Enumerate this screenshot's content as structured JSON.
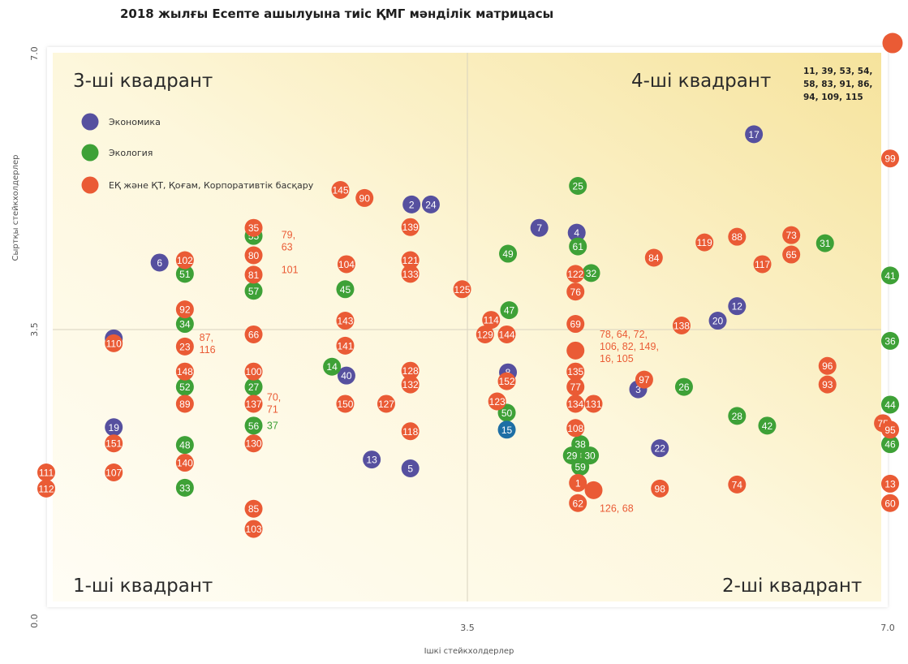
{
  "colors": {
    "economy": "#56509f",
    "ecology": "#3ea137",
    "social": "#ea5b35",
    "dark_blue": "#1e6fa5",
    "bg_warm": "#fbedb3"
  },
  "chart_data": {
    "type": "scatter",
    "title": "2018 жылғы Есепте ашылуына тиіс ҚМГ мәнділік матрицасы",
    "xlabel": "Ішкі стейкхолдерлер",
    "ylabel": "Сыртқы стейкхолдерлер",
    "xlim": [
      0,
      7
    ],
    "ylim": [
      0,
      7
    ],
    "x_ticks": [
      "0.0",
      "3.5",
      "7.0"
    ],
    "y_ticks": [
      "0.0",
      "3.5",
      "7.0"
    ],
    "grid": false,
    "legend_position": "top-left",
    "quadrants": [
      "1-ші квадрант",
      "2-ші квадрант",
      "3-ші квадрант",
      "4-ші квадрант"
    ],
    "top_right_note": [
      "11, 39, 53, 54,",
      "58, 83, 91, 86,",
      "94, 109, 115"
    ],
    "series": [
      {
        "name": "Экономика",
        "color": "economy",
        "points": [
          {
            "label": "17",
            "x": 5.87,
            "y": 5.91
          },
          {
            "label": "2",
            "x": 3.03,
            "y": 5.04
          },
          {
            "label": "24",
            "x": 3.19,
            "y": 5.04
          },
          {
            "label": "7",
            "x": 4.09,
            "y": 4.75
          },
          {
            "label": "4",
            "x": 4.4,
            "y": 4.69
          },
          {
            "label": "6",
            "x": 0.94,
            "y": 4.32
          },
          {
            "label": "12",
            "x": 5.73,
            "y": 3.78
          },
          {
            "label": "20",
            "x": 5.57,
            "y": 3.6
          },
          {
            "label": "9",
            "x": 0.56,
            "y": 3.38
          },
          {
            "label": "40",
            "x": 2.49,
            "y": 2.92
          },
          {
            "label": "8",
            "x": 3.83,
            "y": 2.96
          },
          {
            "label": "3",
            "x": 4.91,
            "y": 2.75
          },
          {
            "label": "19",
            "x": 0.56,
            "y": 2.28
          },
          {
            "label": "22",
            "x": 5.09,
            "y": 2.02
          },
          {
            "label": "13",
            "x": 2.7,
            "y": 1.88
          },
          {
            "label": "5",
            "x": 3.02,
            "y": 1.77
          }
        ]
      },
      {
        "name": "Экология",
        "color": "ecology",
        "points": [
          {
            "label": "25",
            "x": 4.41,
            "y": 5.27
          },
          {
            "label": "55",
            "x": 1.72,
            "y": 4.65
          },
          {
            "label": "61",
            "x": 4.41,
            "y": 4.52
          },
          {
            "label": "31",
            "x": 6.46,
            "y": 4.56
          },
          {
            "label": "49",
            "x": 3.83,
            "y": 4.43
          },
          {
            "label": "51",
            "x": 1.15,
            "y": 4.18
          },
          {
            "label": "32",
            "x": 4.52,
            "y": 4.19
          },
          {
            "label": "45",
            "x": 2.48,
            "y": 3.99
          },
          {
            "label": "57",
            "x": 1.72,
            "y": 3.97
          },
          {
            "label": "41",
            "x": 7.0,
            "y": 4.16
          },
          {
            "label": "47",
            "x": 3.84,
            "y": 3.73
          },
          {
            "label": "34",
            "x": 1.15,
            "y": 3.56
          },
          {
            "label": "36",
            "x": 7.0,
            "y": 3.35
          },
          {
            "label": "14",
            "x": 2.37,
            "y": 3.03
          },
          {
            "label": "52",
            "x": 1.15,
            "y": 2.78
          },
          {
            "label": "27",
            "x": 1.72,
            "y": 2.78
          },
          {
            "label": "26",
            "x": 5.29,
            "y": 2.78
          },
          {
            "label": "50",
            "x": 3.82,
            "y": 2.46
          },
          {
            "label": "44",
            "x": 7.0,
            "y": 2.56
          },
          {
            "label": "28",
            "x": 5.73,
            "y": 2.42
          },
          {
            "label": "42",
            "x": 5.98,
            "y": 2.3
          },
          {
            "label": "56",
            "x": 1.72,
            "y": 2.3
          },
          {
            "label": "48",
            "x": 1.15,
            "y": 2.06
          },
          {
            "label": "38",
            "x": 4.43,
            "y": 2.07
          },
          {
            "label": "29",
            "x": 4.36,
            "y": 1.93
          },
          {
            "label": "30",
            "x": 4.51,
            "y": 1.93
          },
          {
            "label": "46",
            "x": 7.0,
            "y": 2.07
          },
          {
            "label": "59",
            "x": 4.43,
            "y": 1.79
          },
          {
            "label": "33",
            "x": 1.15,
            "y": 1.53
          }
        ]
      },
      {
        "name": "ЕҚ және ҚТ, Қоғам, Корпоративтік басқару",
        "color": "social",
        "points": [
          {
            "label": "",
            "x": 7.02,
            "y": 7.04,
            "big": true
          },
          {
            "label": "99",
            "x": 7.0,
            "y": 5.61
          },
          {
            "label": "145",
            "x": 2.44,
            "y": 5.22
          },
          {
            "label": "90",
            "x": 2.64,
            "y": 5.12
          },
          {
            "label": "139",
            "x": 3.02,
            "y": 4.76
          },
          {
            "label": "35",
            "x": 1.72,
            "y": 4.75
          },
          {
            "label": "88",
            "x": 5.73,
            "y": 4.64
          },
          {
            "label": "73",
            "x": 6.18,
            "y": 4.66
          },
          {
            "label": "119",
            "x": 5.46,
            "y": 4.57
          },
          {
            "label": "65",
            "x": 6.18,
            "y": 4.42
          },
          {
            "label": "84",
            "x": 5.04,
            "y": 4.38
          },
          {
            "label": "80",
            "x": 1.72,
            "y": 4.41
          },
          {
            "label": "121",
            "x": 3.02,
            "y": 4.35
          },
          {
            "label": "117",
            "x": 5.94,
            "y": 4.3
          },
          {
            "label": "102",
            "x": 1.15,
            "y": 4.35
          },
          {
            "label": "104",
            "x": 2.49,
            "y": 4.3
          },
          {
            "label": "81",
            "x": 1.72,
            "y": 4.17
          },
          {
            "label": "133",
            "x": 3.02,
            "y": 4.18
          },
          {
            "label": "122",
            "x": 4.39,
            "y": 4.18
          },
          {
            "label": "76",
            "x": 4.39,
            "y": 3.96
          },
          {
            "label": "125",
            "x": 3.45,
            "y": 3.99
          },
          {
            "label": "92",
            "x": 1.15,
            "y": 3.74
          },
          {
            "label": "114",
            "x": 3.69,
            "y": 3.61
          },
          {
            "label": "143",
            "x": 2.48,
            "y": 3.6
          },
          {
            "label": "69",
            "x": 4.39,
            "y": 3.56
          },
          {
            "label": "138",
            "x": 5.27,
            "y": 3.54
          },
          {
            "label": "129",
            "x": 3.64,
            "y": 3.43
          },
          {
            "label": "144",
            "x": 3.82,
            "y": 3.43
          },
          {
            "label": "66",
            "x": 1.72,
            "y": 3.43
          },
          {
            "label": "110",
            "x": 0.56,
            "y": 3.32
          },
          {
            "label": "23",
            "x": 1.15,
            "y": 3.28
          },
          {
            "label": "141",
            "x": 2.48,
            "y": 3.29
          },
          {
            "label": "",
            "x": 4.39,
            "y": 3.23
          },
          {
            "label": "96",
            "x": 6.48,
            "y": 3.04
          },
          {
            "label": "148",
            "x": 1.15,
            "y": 2.97
          },
          {
            "label": "100",
            "x": 1.72,
            "y": 2.97
          },
          {
            "label": "128",
            "x": 3.02,
            "y": 2.98
          },
          {
            "label": "135",
            "x": 4.39,
            "y": 2.97
          },
          {
            "label": "97",
            "x": 4.96,
            "y": 2.87
          },
          {
            "label": "152",
            "x": 3.82,
            "y": 2.85
          },
          {
            "label": "132",
            "x": 3.02,
            "y": 2.81
          },
          {
            "label": "93",
            "x": 6.48,
            "y": 2.81
          },
          {
            "label": "77",
            "x": 4.39,
            "y": 2.78
          },
          {
            "label": "89",
            "x": 1.15,
            "y": 2.57
          },
          {
            "label": "137",
            "x": 1.72,
            "y": 2.57
          },
          {
            "label": "150",
            "x": 2.48,
            "y": 2.57
          },
          {
            "label": "127",
            "x": 2.82,
            "y": 2.57
          },
          {
            "label": "123",
            "x": 3.74,
            "y": 2.6
          },
          {
            "label": "134",
            "x": 4.39,
            "y": 2.57
          },
          {
            "label": "131",
            "x": 4.54,
            "y": 2.57
          },
          {
            "label": "75",
            "x": 6.94,
            "y": 2.33
          },
          {
            "label": "95",
            "x": 7.0,
            "y": 2.25
          },
          {
            "label": "118",
            "x": 3.02,
            "y": 2.23
          },
          {
            "label": "108",
            "x": 4.39,
            "y": 2.27
          },
          {
            "label": "151",
            "x": 0.56,
            "y": 2.08
          },
          {
            "label": "130",
            "x": 1.72,
            "y": 2.08
          },
          {
            "label": "140",
            "x": 1.15,
            "y": 1.84
          },
          {
            "label": "107",
            "x": 0.56,
            "y": 1.72
          },
          {
            "label": "111",
            "x": 0.0,
            "y": 1.72
          },
          {
            "label": "1",
            "x": 4.41,
            "y": 1.59
          },
          {
            "label": "",
            "x": 4.54,
            "y": 1.5
          },
          {
            "label": "112",
            "x": 0.0,
            "y": 1.52
          },
          {
            "label": "74",
            "x": 5.73,
            "y": 1.57
          },
          {
            "label": "98",
            "x": 5.09,
            "y": 1.52
          },
          {
            "label": "13",
            "x": 7.0,
            "y": 1.58
          },
          {
            "label": "85",
            "x": 1.72,
            "y": 1.27
          },
          {
            "label": "62",
            "x": 4.41,
            "y": 1.34
          },
          {
            "label": "60",
            "x": 7.0,
            "y": 1.34
          },
          {
            "label": "103",
            "x": 1.72,
            "y": 1.02
          }
        ]
      },
      {
        "name": "",
        "color": "dark_blue",
        "points": [
          {
            "label": "15",
            "x": 3.82,
            "y": 2.25
          }
        ]
      }
    ],
    "annotations": [
      {
        "text": "79,",
        "x": 1.95,
        "y": 4.66,
        "color": "social"
      },
      {
        "text": "63",
        "x": 1.95,
        "y": 4.51,
        "color": "social"
      },
      {
        "text": "101",
        "x": 1.95,
        "y": 4.23,
        "color": "social"
      },
      {
        "text": "87,",
        "x": 1.27,
        "y": 3.39,
        "color": "social"
      },
      {
        "text": "116",
        "x": 1.27,
        "y": 3.24,
        "color": "social"
      },
      {
        "text": "70,",
        "x": 1.83,
        "y": 2.65,
        "color": "social"
      },
      {
        "text": "71",
        "x": 1.83,
        "y": 2.5,
        "color": "social"
      },
      {
        "text": "37",
        "x": 1.83,
        "y": 2.3,
        "color": "ecology"
      },
      {
        "text": "78, 64, 72,",
        "x": 4.59,
        "y": 3.43,
        "color": "social"
      },
      {
        "text": "106, 82, 149,",
        "x": 4.59,
        "y": 3.28,
        "color": "social"
      },
      {
        "text": "16, 105",
        "x": 4.59,
        "y": 3.13,
        "color": "social"
      },
      {
        "text": "126, 68",
        "x": 4.59,
        "y": 1.27,
        "color": "social"
      }
    ]
  }
}
